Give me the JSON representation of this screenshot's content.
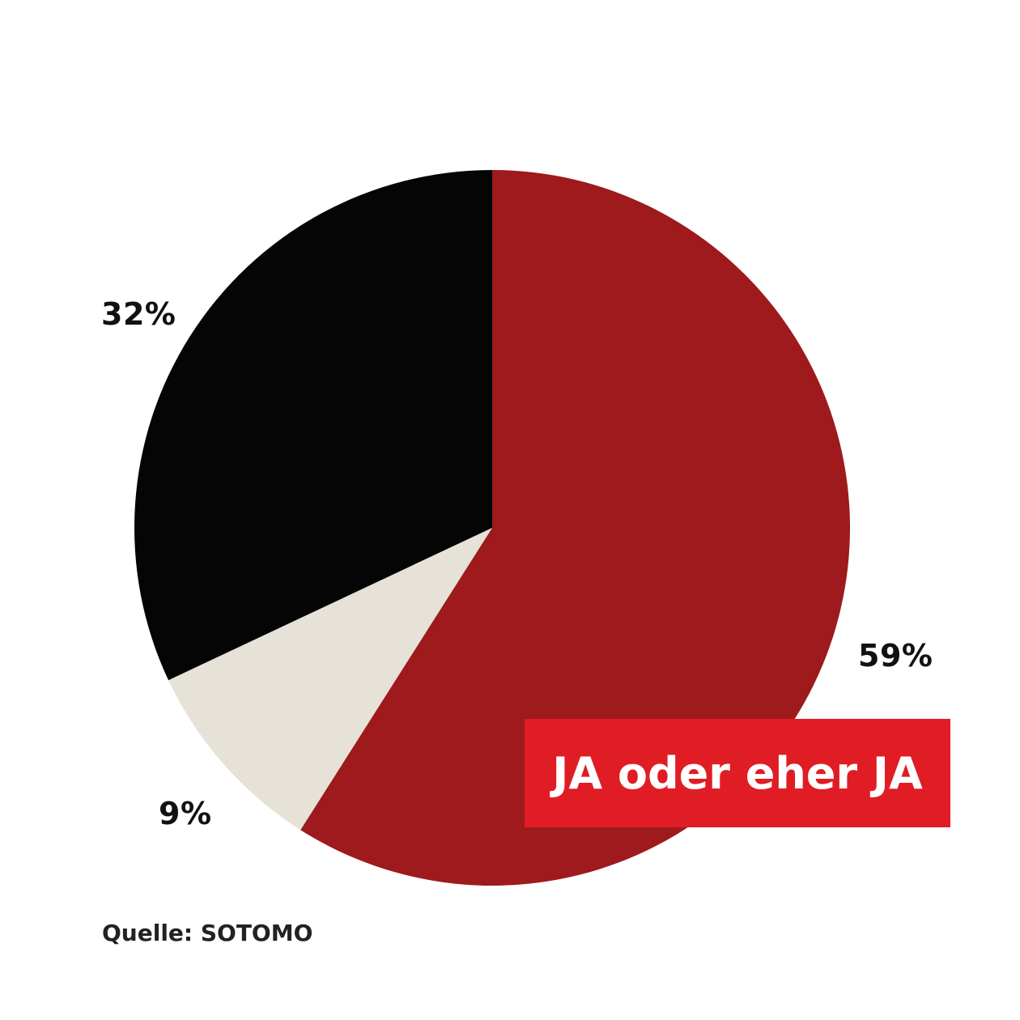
{
  "chart_data": {
    "type": "pie",
    "slices": [
      {
        "label": "59%",
        "value": 59,
        "color": "#9e1a1c"
      },
      {
        "label": "9%",
        "value": 9,
        "color": "#e6e2d7"
      },
      {
        "label": "32%",
        "value": 32,
        "color": "#050506"
      }
    ],
    "start": "12 o'clock",
    "direction": "clockwise"
  },
  "callout": {
    "text": "JA oder eher JA",
    "background": "#e01d24"
  },
  "source": "Quelle: SOTOMO"
}
